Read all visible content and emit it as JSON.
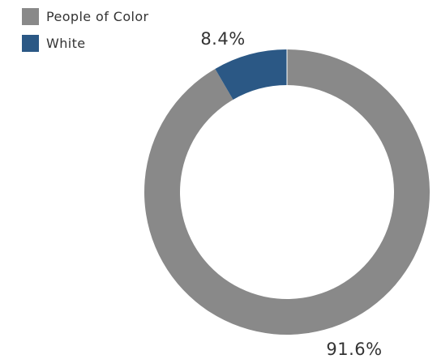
{
  "chart_data": {
    "type": "pie",
    "categories": [
      "People of Color",
      "White"
    ],
    "values": [
      91.6,
      8.4
    ],
    "labels": [
      "91.6%",
      "8.4%"
    ],
    "colors": [
      "#898989",
      "#2b5885"
    ],
    "legend_position": "top-left",
    "donut": true
  }
}
